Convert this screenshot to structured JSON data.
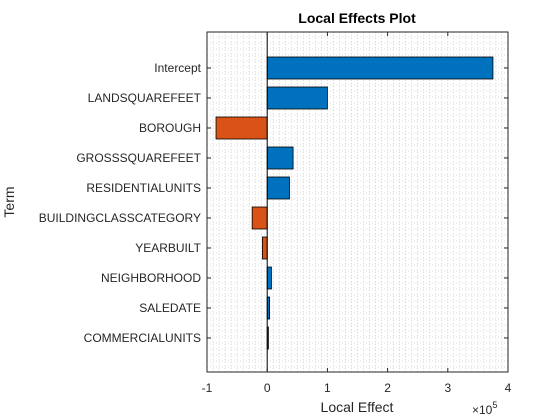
{
  "chart_data": {
    "type": "bar",
    "orientation": "horizontal",
    "title": "Local Effects Plot",
    "xlabel": "Local Effect",
    "ylabel": "Term",
    "x_scale_exponent_label": "×10",
    "x_scale_exponent": "5",
    "xlim": [
      -100000,
      400000
    ],
    "xticks": [
      -100000,
      0,
      100000,
      200000,
      300000,
      400000
    ],
    "xtick_labels": [
      "-1",
      "0",
      "1",
      "2",
      "3",
      "4"
    ],
    "grid": "dotted",
    "categories": [
      "Intercept",
      "LANDSQUAREFEET",
      "BOROUGH",
      "GROSSSQUAREFEET",
      "RESIDENTIALUNITS",
      "BUILDINGCLASSCATEGORY",
      "YEARBUILT",
      "NEIGHBORHOOD",
      "SALEDATE",
      "COMMERCIALUNITS"
    ],
    "values": [
      375000,
      100000,
      -85000,
      43000,
      37000,
      -25000,
      -8000,
      7000,
      4000,
      2000
    ],
    "colors": {
      "positive": "#0072BD",
      "negative": "#D95319"
    }
  }
}
